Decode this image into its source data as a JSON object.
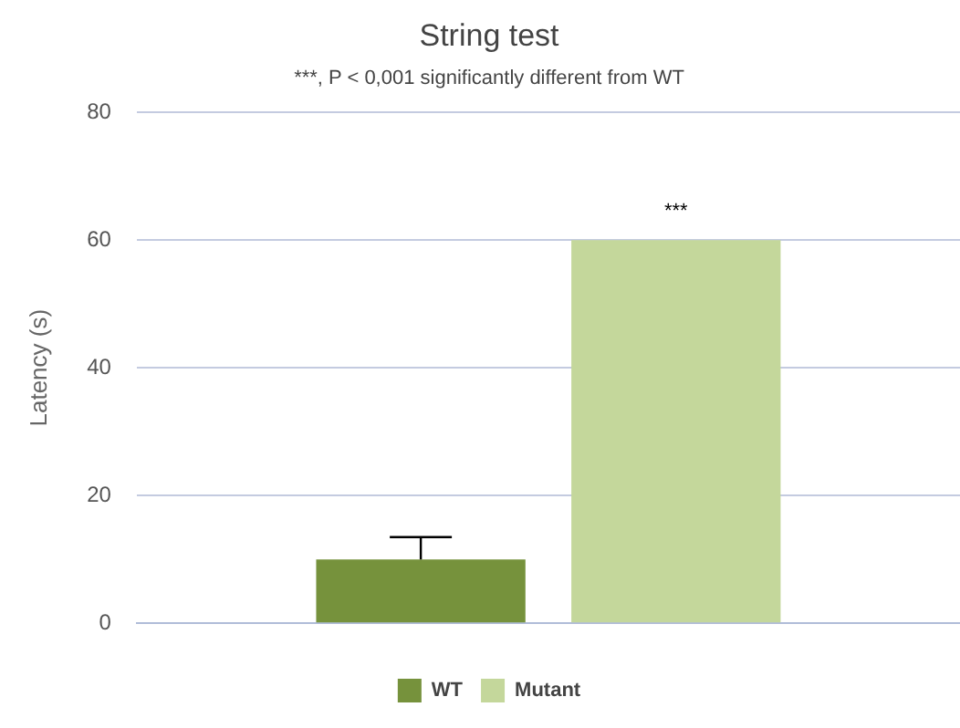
{
  "chart_data": {
    "type": "bar",
    "title": "String test",
    "subtitle": "***, P < 0,001 significantly different from WT",
    "ylabel": "Latency (s)",
    "categories": [
      null
    ],
    "series": [
      {
        "name": "WT",
        "color": "#76923c",
        "values": [
          10
        ],
        "errors": [
          [
            10,
            13.5
          ]
        ]
      },
      {
        "name": "Mutant",
        "color": "#c4d79b",
        "values": [
          60
        ],
        "errors": [
          null
        ]
      }
    ],
    "ylim": [
      0,
      80
    ],
    "yticks": [
      0,
      20,
      40,
      60,
      80
    ],
    "grid": "y",
    "legend": "bottom",
    "annotations": [
      {
        "text": "***",
        "y": 60
      }
    ]
  }
}
